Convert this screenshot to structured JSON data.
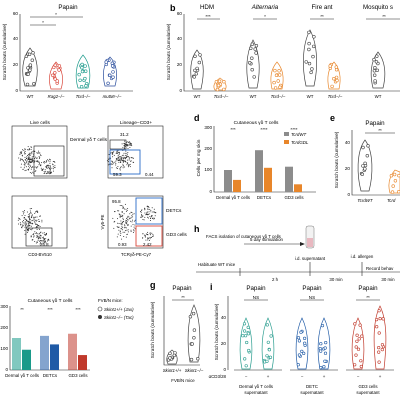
{
  "panel_letters": {
    "a": "a",
    "b": "b",
    "d": "d",
    "e": "e",
    "g": "g",
    "h": "h",
    "i": "i"
  },
  "panel_a": {
    "title": "Papain",
    "ylabel": "Scratch bouts (cumulative)",
    "yticks": [
      "0",
      "20",
      "40",
      "60"
    ],
    "groups": [
      "WT",
      "Rag2−/−",
      "Tcrd−/−",
      "mutMr−/−"
    ],
    "sig": [
      "*",
      "*"
    ]
  },
  "panel_b": {
    "ylabel": "Scratch bouts (cumulative)",
    "yticks": [
      "0",
      "20",
      "40",
      "60"
    ],
    "subpanels": [
      {
        "title": "HDM",
        "groups": [
          "WT",
          "Tcrd−/−"
        ],
        "sig": "***"
      },
      {
        "title": "Alternaria",
        "groups": [
          "WT",
          "Tcrd−/−"
        ],
        "sig": "*"
      },
      {
        "title": "Fire ant",
        "groups": [
          "WT",
          "Tcrd−/−"
        ],
        "sig": "**"
      },
      {
        "title": "Mosquito s",
        "groups": [
          "WT"
        ],
        "sig": "**"
      }
    ]
  },
  "panel_c_flow": {
    "live": "Live cells",
    "lineage": "Lineage−CD3+",
    "dermal": "Dermal γδ T cells",
    "detcs": "DETCs",
    "gd3": "GD3 cells",
    "x_cd3": "CD3-BV510",
    "x_tcr": "TCRγδ-PE-Cy7",
    "y_v5": "Vγ5-PE",
    "n_live": "1.95",
    "n_top1": "31.2",
    "n_top2": "59.3",
    "n_top3": "0.44",
    "n_bot1": "26.8",
    "n_bot2": "95.8",
    "n_bot3": "0.93",
    "n_bot4": "2.42"
  },
  "panel_d": {
    "title": "Cutaneous γδ T cells",
    "ylabel": "Cells per mg skin",
    "yticks": [
      "0",
      "100",
      "200",
      "300"
    ],
    "groups": [
      "Dermal γδ T cells",
      "DETCs",
      "GD3 cells"
    ],
    "legend": [
      "TcrdWT",
      "TcrdGDL"
    ],
    "sig": [
      "***",
      "****",
      "****"
    ],
    "colors": {
      "wt": "#8c8c8c",
      "gdl": "#e8862a"
    }
  },
  "panel_e": {
    "title": "Papain",
    "ylabel": "Scratch bouts (cumulative)",
    "yticks": [
      "0",
      "20",
      "40"
    ],
    "groups": [
      "TcrdWT",
      "Tcrd"
    ],
    "sig": "**"
  },
  "panel_f": {
    "title": "Cutaneous γδ T cells",
    "yticks": [
      "0",
      "100",
      "200",
      "300"
    ],
    "groups": [
      "Dermal γδ T cells",
      "DETCs",
      "GD3 cells"
    ],
    "sig": [
      "**",
      "***",
      "***"
    ],
    "legend_title": "FVB/N mice:",
    "legend": [
      "Skint1+/+ (Jax)",
      "Skint1−/− (Tac)"
    ]
  },
  "panel_g": {
    "title": "Papain",
    "ylabel": "Scratch bouts (cumulative)",
    "yticks": [
      "0",
      "20",
      "40",
      "60"
    ],
    "groups": [
      "Skint1+/+",
      "Skint1−/−"
    ],
    "sig": "**",
    "footer": "FVB/N mice"
  },
  "panel_h": {
    "facs": "FACS isolation of cutaneous γδ T cells",
    "stim": "5 day stimulation",
    "habituate": "Habituate WT mice",
    "t2h": "2 h",
    "id_super": "i.d. supernatant",
    "t30a": "30 min",
    "id_allergen": "i.d. allergen",
    "t30b": "30 min",
    "record": "Record behav"
  },
  "panel_i": {
    "ylabel": "Scratch bouts (cumulative)",
    "yticks": [
      "0",
      "20",
      "40"
    ],
    "xrow_label": "αCD3/28",
    "subpanels": [
      {
        "title": "Papain",
        "sig": "NS",
        "signs": [
          "−",
          "+"
        ],
        "caption": "Dermal γδ T cells supernatant",
        "color": "#2a9d8f"
      },
      {
        "title": "Papain",
        "sig": "NS",
        "signs": [
          "−",
          "+"
        ],
        "caption": "DETC supernatant",
        "color": "#1f5aa6"
      },
      {
        "title": "Papain",
        "sig": "**",
        "signs": [
          "−",
          "+"
        ],
        "caption": "GD3 cells supernatant",
        "color": "#c0392b"
      }
    ]
  }
}
